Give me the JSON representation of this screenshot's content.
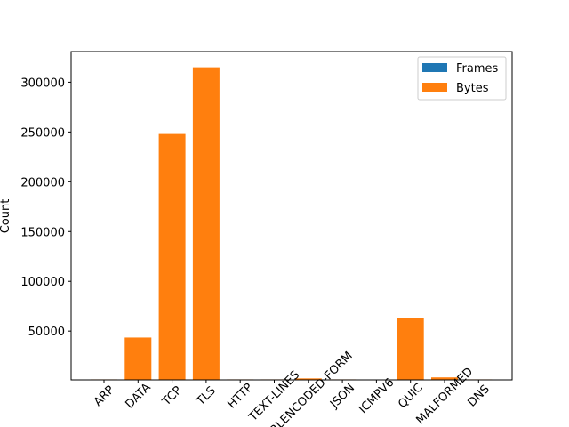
{
  "chart_data": {
    "type": "bar",
    "y_label": "Count",
    "categories": [
      "ARP",
      "DATA",
      "TCP",
      "TLS",
      "HTTP",
      "TEXT-LINES",
      "URLENCODED-FORM",
      "JSON",
      "ICMPV6",
      "QUIC",
      "MALFORMED",
      "DNS"
    ],
    "series": [
      {
        "name": "Frames",
        "color": "#1f77b4",
        "values": [
          20,
          50,
          300,
          250,
          5,
          5,
          3,
          3,
          2,
          60,
          5,
          10
        ]
      },
      {
        "name": "Bytes",
        "color": "#ff7f0e",
        "values": [
          1500,
          43500,
          248000,
          315000,
          1500,
          1500,
          2500,
          1500,
          1000,
          63000,
          3500,
          1500
        ]
      }
    ],
    "ylim": [
      1000,
      330750
    ],
    "yticks": [
      50000,
      100000,
      150000,
      200000,
      250000,
      300000
    ],
    "legend": "upper right"
  }
}
